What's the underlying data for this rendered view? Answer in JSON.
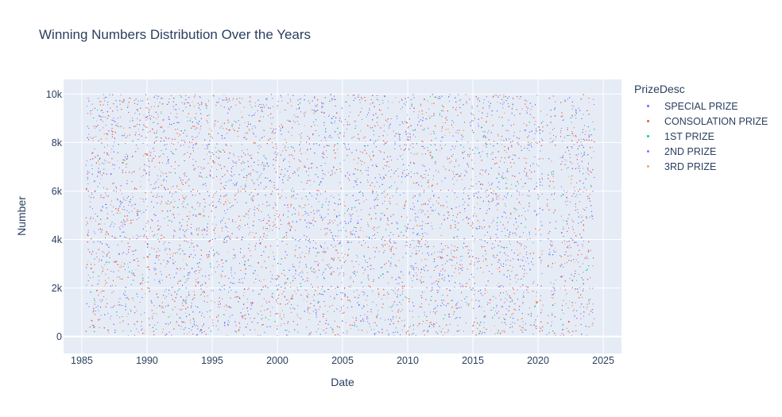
{
  "chart_data": {
    "type": "scatter",
    "title": "Winning Numbers Distribution Over the Years",
    "xlabel": "Date",
    "ylabel": "Number",
    "xlim": [
      1983.6,
      2026.4
    ],
    "ylim": [
      -700,
      10600
    ],
    "x_ticks": [
      1985,
      1990,
      1995,
      2000,
      2005,
      2010,
      2015,
      2020,
      2025
    ],
    "y_ticks": [
      0,
      2000,
      4000,
      6000,
      8000,
      10000
    ],
    "y_tick_labels": [
      "0",
      "2k",
      "4k",
      "6k",
      "8k",
      "10k"
    ],
    "x_range": [
      1985.3,
      2024.3
    ],
    "y_range": [
      0,
      9999
    ],
    "gaps": [
      [
        2020.35,
        2020.65
      ],
      [
        2021.35,
        2021.65
      ]
    ],
    "grid": true,
    "legend_title": "PrizeDesc",
    "legend_position": "right",
    "series": [
      {
        "name": "SPECIAL PRIZE",
        "color": "#636efa",
        "share": 0.37
      },
      {
        "name": "CONSOLATION PRIZE",
        "color": "#ef553b",
        "share": 0.37
      },
      {
        "name": "1ST PRIZE",
        "color": "#00cc96",
        "share": 0.087
      },
      {
        "name": "2ND PRIZE",
        "color": "#ab63fa",
        "share": 0.087
      },
      {
        "name": "3RD PRIZE",
        "color": "#ffa15a",
        "share": 0.086
      }
    ]
  }
}
